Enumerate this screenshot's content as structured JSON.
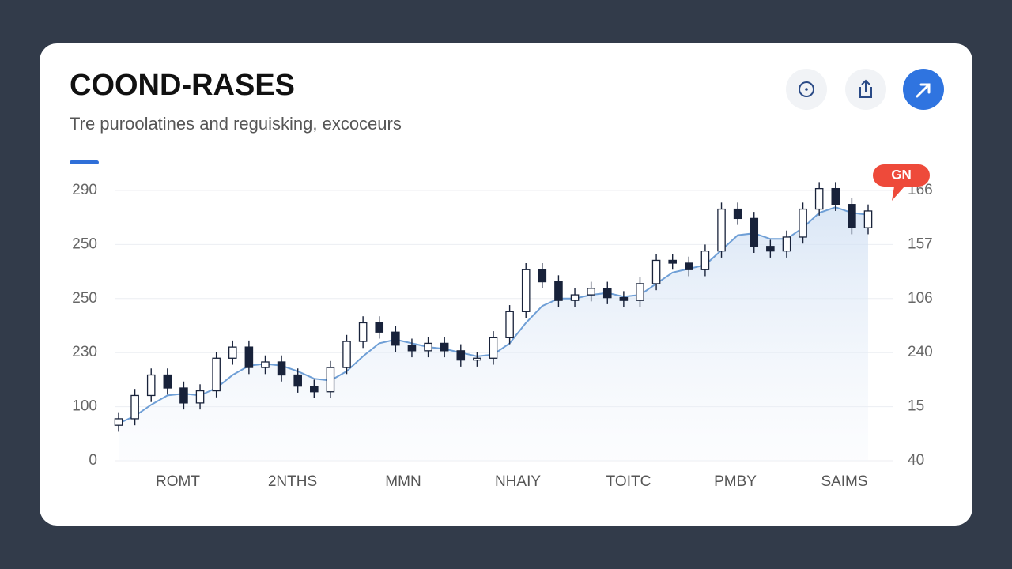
{
  "chart_data": {
    "type": "candlestick",
    "title": "COOND-RASES",
    "subtitle": "Tre puroolatines and reguisking, excoceurs",
    "badge": "GN",
    "y_axis_labels": [
      "290",
      "250",
      "250",
      "230",
      "100",
      "0"
    ],
    "y2_axis_labels": [
      "166",
      "157",
      "106",
      "240",
      "15",
      "40"
    ],
    "x_labels": [
      "ROMT",
      "2NTHS",
      "MMN",
      "NHAIY",
      "TOITC",
      "PMBY",
      "SAIMS"
    ],
    "ylim": [
      0,
      290
    ],
    "grid": true,
    "up_color": "#ffffff",
    "down_color": "#18223a",
    "line_color": "#6f9fd6",
    "open": [
      38,
      45,
      70,
      92,
      78,
      62,
      75,
      110,
      122,
      100,
      106,
      92,
      80,
      74,
      100,
      128,
      148,
      138,
      124,
      118,
      126,
      118,
      108,
      110,
      132,
      160,
      205,
      192,
      172,
      178,
      185,
      175,
      172,
      190,
      215,
      212,
      205,
      225,
      270,
      260,
      230,
      225,
      240,
      270,
      292,
      275,
      250
    ],
    "high": [
      52,
      77,
      99,
      99,
      85,
      82,
      117,
      129,
      129,
      113,
      113,
      99,
      87,
      107,
      135,
      155,
      155,
      145,
      131,
      133,
      133,
      125,
      117,
      139,
      167,
      212,
      212,
      199,
      185,
      192,
      192,
      182,
      197,
      222,
      222,
      219,
      232,
      277,
      277,
      267,
      237,
      247,
      277,
      299,
      299,
      282,
      275
    ],
    "low": [
      31,
      38,
      63,
      71,
      55,
      55,
      68,
      103,
      93,
      93,
      85,
      73,
      67,
      67,
      93,
      121,
      131,
      117,
      111,
      111,
      111,
      101,
      101,
      103,
      125,
      153,
      185,
      165,
      165,
      171,
      168,
      165,
      165,
      183,
      205,
      198,
      198,
      218,
      253,
      223,
      218,
      218,
      233,
      263,
      268,
      243,
      243
    ],
    "close": [
      45,
      70,
      92,
      78,
      62,
      75,
      110,
      122,
      100,
      106,
      92,
      80,
      74,
      100,
      128,
      148,
      138,
      124,
      118,
      126,
      118,
      108,
      110,
      132,
      160,
      205,
      192,
      172,
      178,
      185,
      175,
      172,
      190,
      215,
      212,
      205,
      225,
      270,
      260,
      230,
      225,
      240,
      270,
      292,
      275,
      250,
      268
    ],
    "average": [
      40,
      48,
      60,
      70,
      72,
      70,
      78,
      92,
      102,
      104,
      102,
      96,
      88,
      86,
      96,
      112,
      126,
      130,
      126,
      122,
      120,
      116,
      112,
      114,
      126,
      148,
      166,
      174,
      174,
      178,
      180,
      176,
      178,
      190,
      202,
      206,
      210,
      226,
      242,
      244,
      238,
      238,
      250,
      266,
      272,
      266,
      264
    ]
  }
}
